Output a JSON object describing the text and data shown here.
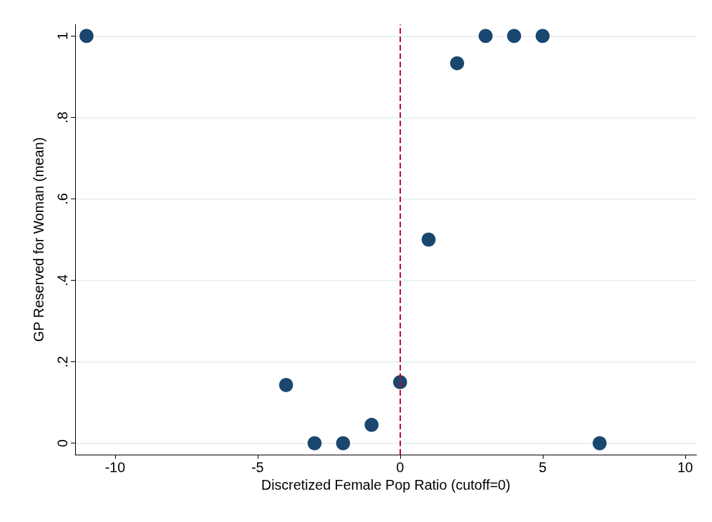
{
  "chart_data": {
    "type": "scatter",
    "xlabel": "Discretized Female Pop Ratio (cutoff=0)",
    "ylabel": "GP Reserved for Woman (mean)",
    "x": [
      -11,
      -4,
      -3,
      -2,
      -1,
      0,
      1,
      2,
      3,
      4,
      5,
      7
    ],
    "series": [
      {
        "color": "#1a476f",
        "values": [
          1,
          0.143,
          0,
          0,
          0.045,
          0.15,
          0.5,
          0.933,
          1,
          1,
          1,
          0
        ]
      }
    ],
    "xlim": [
      -11.4,
      10.4
    ],
    "xticks": [
      -10,
      -5,
      0,
      5,
      10
    ],
    "ylim": [
      -0.028,
      1.028
    ],
    "yticks": [
      {
        "value": 0,
        "label": "0"
      },
      {
        "value": 0.2,
        "label": ".2"
      },
      {
        "value": 0.4,
        "label": ".4"
      },
      {
        "value": 0.6,
        "label": ".6"
      },
      {
        "value": 0.8,
        "label": ".8"
      },
      {
        "value": 1,
        "label": "1"
      }
    ],
    "grid": "y",
    "marker": "circle",
    "ref_lines": [
      {
        "axis": "x",
        "value": 0,
        "color": "#c10534",
        "line_style": "dashed"
      }
    ]
  }
}
